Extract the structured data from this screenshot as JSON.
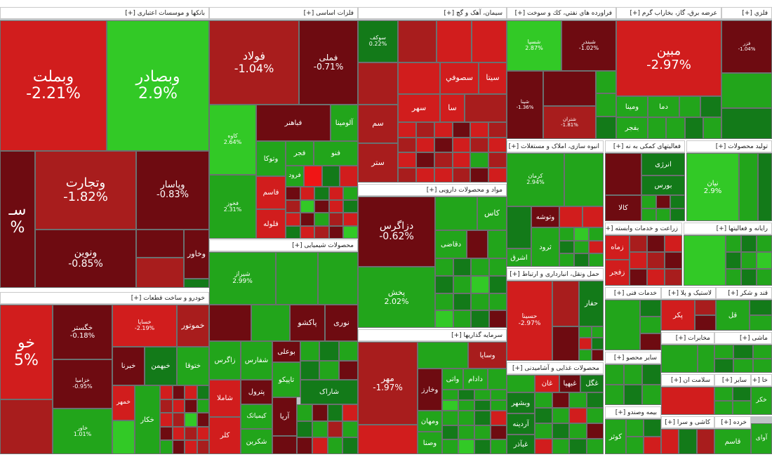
{
  "colors": {
    "dark_red": "#6e0b11",
    "mid_red": "#a81d1d",
    "red": "#d11d1d",
    "bright_red": "#f01515",
    "dark_green": "#137a19",
    "green": "#22a51b",
    "bright_green": "#32c926",
    "border": "#6b7070"
  },
  "sectors": {
    "banks": "بانکها و موسسات اعتباری [+]",
    "metals": "فلزات اساسی [+]",
    "cement": "سیمان، آهک و گچ [+]",
    "oil": "فراورده هاي نفتي، كك و سوخت [+]",
    "power": "عرضه برق، گاز، بخاراب گرم [+]",
    "mining": "فلزي [+]",
    "auto": "خودرو و ساخت قطعات [+]",
    "chemical": "محصولات شیمیایی [+]",
    "pharma": "مواد و محصولات دارویی [+]",
    "investment": "سرمایه گذاریها [+]",
    "realestate": "انبوه سازی، املاک و مستغلات [+]",
    "support": "فعالیتهای کمکی به نه [+]",
    "produce": "تولید محصولات [+]",
    "rayane": "رایانه و فعالیتها [+]",
    "transport": "حمل ونقل، انبارداری و ارتباط [+]",
    "agri": "زراعت و خدمات وابسته [+]",
    "food": "محصولات غذایی و آشامیدنی [+]",
    "services": "خدمات فنی [+]",
    "plastic": "لاستیک و پلا [+]",
    "sugar": "قند و شکر [+]",
    "other_mining": "سایر محصو [+]",
    "telecom": "مخابرات [+]",
    "machinery": "ماشی [+]",
    "health": "سلامت ان [+]",
    "other": "سایر [+]",
    "insurance": "بیمه وصندو [+]",
    "tiles": "کاشی و سرا [+]",
    "retail": "خرده [+]",
    "wood": "خا [+]"
  },
  "tiles": {
    "vbmellat": {
      "sym": "وبملت",
      "pct": "-2.21%"
    },
    "vbsadr": {
      "sym": "وبصادر",
      "pct": "2.9%"
    },
    "vtejarat": {
      "sym": "وتجارت",
      "pct": "-1.82%"
    },
    "vbsar": {
      "sym": "وپاسار",
      "pct": "-0.83%"
    },
    "vnovin": {
      "sym": "ونوین",
      "pct": "-0.85%"
    },
    "sbank": {
      "sym": "سـ",
      "pct": "%"
    },
    "vkhavar": {
      "sym": "وخاور",
      "pct": ""
    },
    "foolad": {
      "sym": "فولاد",
      "pct": "-1.04%"
    },
    "fameli": {
      "sym": "فملی",
      "pct": "-0.71%"
    },
    "kave": {
      "sym": "کاوه",
      "pct": "2.64%"
    },
    "fkhooz": {
      "sym": "فخوز",
      "pct": "2.31%"
    },
    "alumina": {
      "sym": "آلومینا",
      "pct": ""
    },
    "fbahonar": {
      "sym": "فباهنر",
      "pct": ""
    },
    "vtoka": {
      "sym": "وتوکا",
      "pct": ""
    },
    "fjar": {
      "sym": "فجر",
      "pct": ""
    },
    "farood": {
      "sym": "فرود",
      "pct": ""
    },
    "faqsam": {
      "sym": "فاسم",
      "pct": ""
    },
    "faloleh": {
      "sym": "فلوله",
      "pct": ""
    },
    "fanoo": {
      "sym": "فنو",
      "pct": ""
    },
    "sokaf": {
      "sym": "سوکف",
      "pct": "0.22%"
    },
    "sesofi": {
      "sym": "سصوفي",
      "pct": ""
    },
    "sita": {
      "sym": "سیتا",
      "pct": ""
    },
    "sahar": {
      "sym": "سهر",
      "pct": ""
    },
    "sasa": {
      "sym": "سا",
      "pct": ""
    },
    "sam": {
      "sym": "سم",
      "pct": ""
    },
    "star": {
      "sym": "ستر",
      "pct": ""
    },
    "shasta": {
      "sym": "شسپا",
      "pct": "2.87%"
    },
    "shabandar": {
      "sym": "شبندر",
      "pct": "-1.02%"
    },
    "shpna": {
      "sym": "شپنا",
      "pct": "-1.36%"
    },
    "shtran": {
      "sym": "شتران",
      "pct": "-1.81%"
    },
    "mabin": {
      "sym": "مبین",
      "pct": "-2.97%"
    },
    "vmina": {
      "sym": "ومینا",
      "pct": ""
    },
    "dama": {
      "sym": "دما",
      "pct": ""
    },
    "bfajr": {
      "sym": "بفجر",
      "pct": ""
    },
    "kfar": {
      "sym": "فزر",
      "pct": "-1.04%"
    },
    "khodro": {
      "sym": "خو",
      "pct": "5%"
    },
    "khgaster": {
      "sym": "خگستر",
      "pct": "-0.18%"
    },
    "khmotor": {
      "sym": "خموتور",
      "pct": ""
    },
    "khsapa": {
      "sym": "خساپا",
      "pct": "-2.19%"
    },
    "khtoga": {
      "sym": "ختوقا",
      "pct": ""
    },
    "kharita": {
      "sym": "خبرنا",
      "pct": ""
    },
    "khbahman": {
      "sym": "خبهمن",
      "pct": ""
    },
    "khzamiad": {
      "sym": "خزامیا",
      "pct": "-0.95%"
    },
    "khchakad": {
      "sym": "خکار",
      "pct": ""
    },
    "khamhar": {
      "sym": "خمهر",
      "pct": ""
    },
    "khrar": {
      "sym": "خاور",
      "pct": "1.01%"
    },
    "shiraz": {
      "sym": "شیراز",
      "pct": "2.99%"
    },
    "shpakeshoo": {
      "sym": "پاکشو",
      "pct": ""
    },
    "nouri": {
      "sym": "نوری",
      "pct": ""
    },
    "zagros": {
      "sym": "زاگرس",
      "pct": ""
    },
    "sharas": {
      "sym": "شفارس",
      "pct": ""
    },
    "bouali": {
      "sym": "بوعلی",
      "pct": ""
    },
    "petrol": {
      "sym": "پترول",
      "pct": ""
    },
    "tapiko": {
      "sym": "تاپیکو",
      "pct": ""
    },
    "shamla": {
      "sym": "شاملا",
      "pct": ""
    },
    "chemian": {
      "sym": "کیمیاتک",
      "pct": ""
    },
    "shakran": {
      "sym": "شکربن",
      "pct": ""
    },
    "karl": {
      "sym": "کلر",
      "pct": ""
    },
    "arya": {
      "sym": "آریا",
      "pct": ""
    },
    "sharak": {
      "sym": "شاراک",
      "pct": ""
    },
    "darzagros": {
      "sym": "دزاگرس",
      "pct": "-0.62%"
    },
    "pakhsh": {
      "sym": "پخش",
      "pct": "2.02%"
    },
    "dghazi": {
      "sym": "دقاضی",
      "pct": ""
    },
    "kaas": {
      "sym": "کاس",
      "pct": ""
    },
    "mehr": {
      "sym": "مهر",
      "pct": "-1.97%"
    },
    "vsaya": {
      "sym": "وسایا",
      "pct": ""
    },
    "vsakhar": {
      "sym": "وخارز",
      "pct": ""
    },
    "vatima": {
      "sym": "واتی",
      "pct": ""
    },
    "dadam": {
      "sym": "دادام",
      "pct": ""
    },
    "vmehan": {
      "sym": "ومهان",
      "pct": ""
    },
    "vsenta": {
      "sym": "وصنا",
      "pct": ""
    },
    "kermanshah": {
      "sym": "کرمان",
      "pct": "2.94%"
    },
    "vtosha": {
      "sym": "وتوشه",
      "pct": ""
    },
    "sharq": {
      "sym": "اشرق",
      "pct": ""
    },
    "troud": {
      "sym": "ثرود",
      "pct": ""
    },
    "nirou": {
      "sym": "انرژی",
      "pct": ""
    },
    "bours": {
      "sym": "بورس",
      "pct": ""
    },
    "kala": {
      "sym": "کالا",
      "pct": ""
    },
    "nian": {
      "sym": "نیان",
      "pct": "2.9%"
    },
    "hasina": {
      "sym": "حسینا",
      "pct": "-2.97%"
    },
    "hafaar": {
      "sym": "حفار",
      "pct": ""
    },
    "zamahar": {
      "sym": "زماه",
      "pct": ""
    },
    "zafjar": {
      "sym": "زفجر",
      "pct": ""
    },
    "ghazal": {
      "sym": "غگل",
      "pct": ""
    },
    "ghbehpak": {
      "sym": "غبهپا",
      "pct": ""
    },
    "ghazan": {
      "sym": "غان",
      "pct": ""
    },
    "vbshahr": {
      "sym": "وبشهر",
      "pct": ""
    },
    "ardina": {
      "sym": "آردینه",
      "pct": ""
    },
    "ghabgadr": {
      "sym": "غبآذر",
      "pct": ""
    },
    "vkootar": {
      "sym": "کوثر",
      "pct": ""
    },
    "qal": {
      "sym": "قل",
      "pct": ""
    },
    "ghasem": {
      "sym": "قاسم",
      "pct": ""
    },
    "avak": {
      "sym": "آوای",
      "pct": ""
    },
    "pkar": {
      "sym": "پکر",
      "pct": ""
    },
    "kher": {
      "sym": "خکر",
      "pct": ""
    }
  }
}
